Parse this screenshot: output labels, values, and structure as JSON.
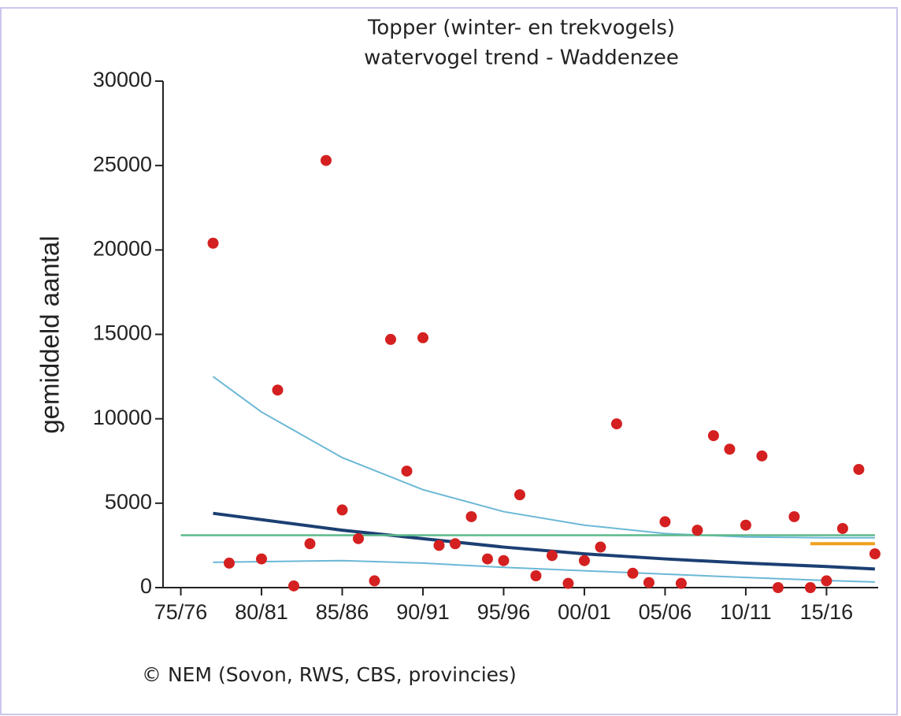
{
  "chart_data": {
    "type": "scatter",
    "title": "Topper (winter- en trekvogels)",
    "subtitle": "watervogel trend - Waddenzee",
    "ylabel": "gemiddeld aantal",
    "source": "© NEM (Sovon, RWS, CBS, provincies)",
    "xlim": [
      1973.9,
      2018.2
    ],
    "ylim": [
      0,
      30000
    ],
    "yticks": [
      0,
      5000,
      10000,
      15000,
      20000,
      25000,
      30000
    ],
    "xticks": [
      {
        "value": 1975,
        "label": "75/76"
      },
      {
        "value": 1980,
        "label": "80/81"
      },
      {
        "value": 1985,
        "label": "85/86"
      },
      {
        "value": 1990,
        "label": "90/91"
      },
      {
        "value": 1995,
        "label": "95/96"
      },
      {
        "value": 2000,
        "label": "00/01"
      },
      {
        "value": 2005,
        "label": "05/06"
      },
      {
        "value": 2010,
        "label": "10/11"
      },
      {
        "value": 2015,
        "label": "15/16"
      }
    ],
    "series": [
      {
        "type": "scatter",
        "color": "#d42020",
        "x": [
          1977,
          1978,
          1980,
          1981,
          1982,
          1983,
          1984,
          1985,
          1986,
          1987,
          1988,
          1989,
          1990,
          1991,
          1992,
          1993,
          1994,
          1995,
          1996,
          1997,
          1998,
          1999,
          2000,
          2001,
          2002,
          2003,
          2004,
          2005,
          2006,
          2007,
          2008,
          2009,
          2010,
          2011,
          2012,
          2013,
          2014,
          2015,
          2016,
          2017,
          2018
        ],
        "values": [
          20400,
          1450,
          1700,
          11700,
          100,
          2600,
          25300,
          4600,
          2900,
          400,
          14700,
          6900,
          14800,
          2500,
          2600,
          4200,
          1700,
          1600,
          5500,
          700,
          1900,
          250,
          1600,
          2400,
          9700,
          850,
          300,
          3900,
          250,
          3400,
          9000,
          8200,
          3700,
          7800,
          0,
          4200,
          0,
          400,
          3500,
          7000,
          2000
        ]
      },
      {
        "type": "line",
        "color": "#6bb8d6",
        "width": 2,
        "x": [
          1977,
          1980,
          1985,
          1990,
          1995,
          2000,
          2005,
          2010,
          2015,
          2018
        ],
        "values": [
          12500,
          10400,
          7700,
          5800,
          4500,
          3700,
          3200,
          3000,
          2950,
          2950
        ]
      },
      {
        "type": "line",
        "color": "#6bb8d6",
        "width": 2,
        "x": [
          1977,
          1985,
          1990,
          1995,
          2000,
          2005,
          2010,
          2015,
          2018
        ],
        "values": [
          1500,
          1600,
          1450,
          1200,
          1000,
          800,
          600,
          420,
          330
        ]
      },
      {
        "type": "line",
        "color": "#1c3f73",
        "width": 4,
        "x": [
          1977,
          1985,
          1990,
          1995,
          2000,
          2005,
          2010,
          2015,
          2018
        ],
        "values": [
          4400,
          3400,
          2900,
          2400,
          2000,
          1700,
          1450,
          1250,
          1100
        ]
      },
      {
        "type": "line",
        "color": "#5cb88a",
        "width": 2.5,
        "x": [
          1975,
          2018
        ],
        "values": [
          3100,
          3100
        ]
      },
      {
        "type": "line",
        "color": "#f0a020",
        "width": 4,
        "x": [
          2014,
          2018
        ],
        "values": [
          2600,
          2600
        ]
      }
    ]
  }
}
